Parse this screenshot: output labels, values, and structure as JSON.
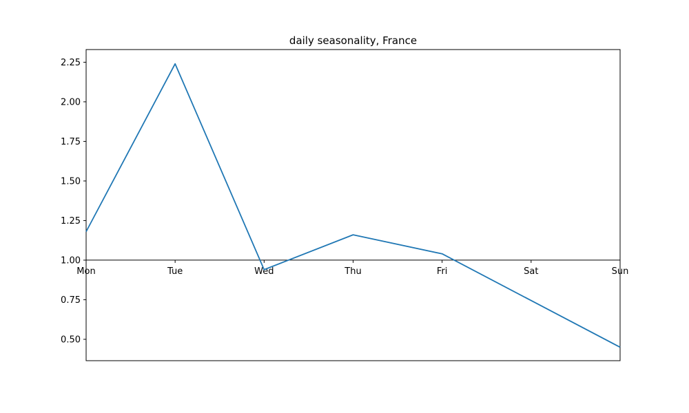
{
  "chart_data": {
    "type": "line",
    "title": "daily seasonality, France",
    "xlabel": "",
    "ylabel": "",
    "categories": [
      "Mon",
      "Tue",
      "Wed",
      "Thu",
      "Fri",
      "Sat",
      "Sun"
    ],
    "series": [
      {
        "values": [
          1.18,
          2.24,
          0.94,
          1.16,
          1.04,
          0.745,
          0.45
        ]
      }
    ],
    "ylim": [
      0.365,
      2.33
    ],
    "yticks": [
      "0.50",
      "0.75",
      "1.00",
      "1.25",
      "1.50",
      "1.75",
      "2.00",
      "2.25"
    ],
    "x_axis_at": 1.0,
    "grid": false,
    "colors": {
      "line": "#1f77b4",
      "axis": "#000000"
    }
  }
}
